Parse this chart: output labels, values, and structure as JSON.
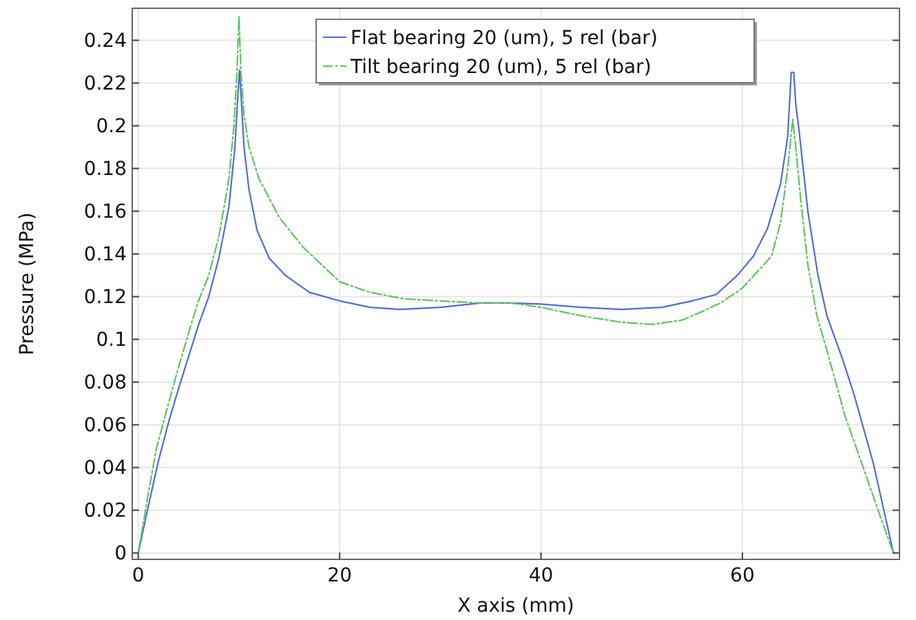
{
  "chart_data": {
    "type": "line",
    "xlabel": "X axis (mm)",
    "ylabel": "Pressure (MPa)",
    "xlim": [
      -0.6,
      75.6
    ],
    "ylim": [
      -0.003,
      0.255
    ],
    "xticks": [
      0,
      20,
      40,
      60
    ],
    "yticks": [
      0,
      0.02,
      0.04,
      0.06,
      0.08,
      0.1,
      0.12,
      0.14,
      0.16,
      0.18,
      0.2,
      0.22,
      0.24
    ],
    "grid": true,
    "legend": "top",
    "series": [
      {
        "name": "Flat bearing 20 (um), 5 rel (bar)",
        "color": "#4f6bd8",
        "line_style": "solid",
        "x": [
          0,
          1,
          2,
          3,
          4,
          5,
          6,
          7,
          8,
          9,
          9.6,
          9.9,
          10.05,
          10.2,
          10.5,
          11,
          11.8,
          13,
          14.6,
          17,
          20,
          23,
          26,
          30,
          34,
          37,
          40,
          44,
          48,
          52,
          55,
          57.4,
          59.5,
          61.1,
          62.5,
          63.8,
          64.5,
          64.85,
          65.1,
          65.3,
          65.6,
          66.5,
          67.5,
          68.4,
          70,
          71.1,
          73,
          75
        ],
        "values": [
          0,
          0.022,
          0.043,
          0.061,
          0.077,
          0.092,
          0.107,
          0.12,
          0.138,
          0.162,
          0.19,
          0.215,
          0.226,
          0.215,
          0.19,
          0.17,
          0.151,
          0.138,
          0.13,
          0.122,
          0.118,
          0.115,
          0.114,
          0.115,
          0.117,
          0.117,
          0.1165,
          0.115,
          0.114,
          0.115,
          0.118,
          0.121,
          0.13,
          0.139,
          0.152,
          0.173,
          0.195,
          0.225,
          0.225,
          0.21,
          0.199,
          0.16,
          0.13,
          0.111,
          0.09,
          0.074,
          0.042,
          0
        ]
      },
      {
        "name": "Tilt bearing 20 (um), 5 rel (bar)",
        "color": "#5cc45c",
        "line_style": "dashed",
        "x": [
          0,
          1,
          1.8,
          3,
          4,
          5,
          5.9,
          7,
          8,
          9,
          9.5,
          9.8,
          10,
          10.2,
          10.5,
          11,
          12,
          12.7,
          14,
          16.4,
          20,
          23,
          26.4,
          30,
          34,
          37,
          40,
          44,
          48,
          51,
          54,
          56,
          57.8,
          60,
          62.9,
          63.8,
          64.5,
          65,
          65.3,
          65.8,
          66.5,
          67.4,
          68.5,
          70.2,
          72,
          74,
          75
        ],
        "values": [
          0,
          0.028,
          0.049,
          0.07,
          0.087,
          0.103,
          0.117,
          0.13,
          0.148,
          0.175,
          0.2,
          0.225,
          0.251,
          0.225,
          0.205,
          0.19,
          0.175,
          0.169,
          0.157,
          0.143,
          0.127,
          0.122,
          0.119,
          0.118,
          0.117,
          0.117,
          0.115,
          0.111,
          0.108,
          0.107,
          0.109,
          0.113,
          0.117,
          0.124,
          0.139,
          0.155,
          0.18,
          0.203,
          0.19,
          0.165,
          0.135,
          0.111,
          0.093,
          0.064,
          0.04,
          0.013,
          0
        ]
      }
    ]
  }
}
